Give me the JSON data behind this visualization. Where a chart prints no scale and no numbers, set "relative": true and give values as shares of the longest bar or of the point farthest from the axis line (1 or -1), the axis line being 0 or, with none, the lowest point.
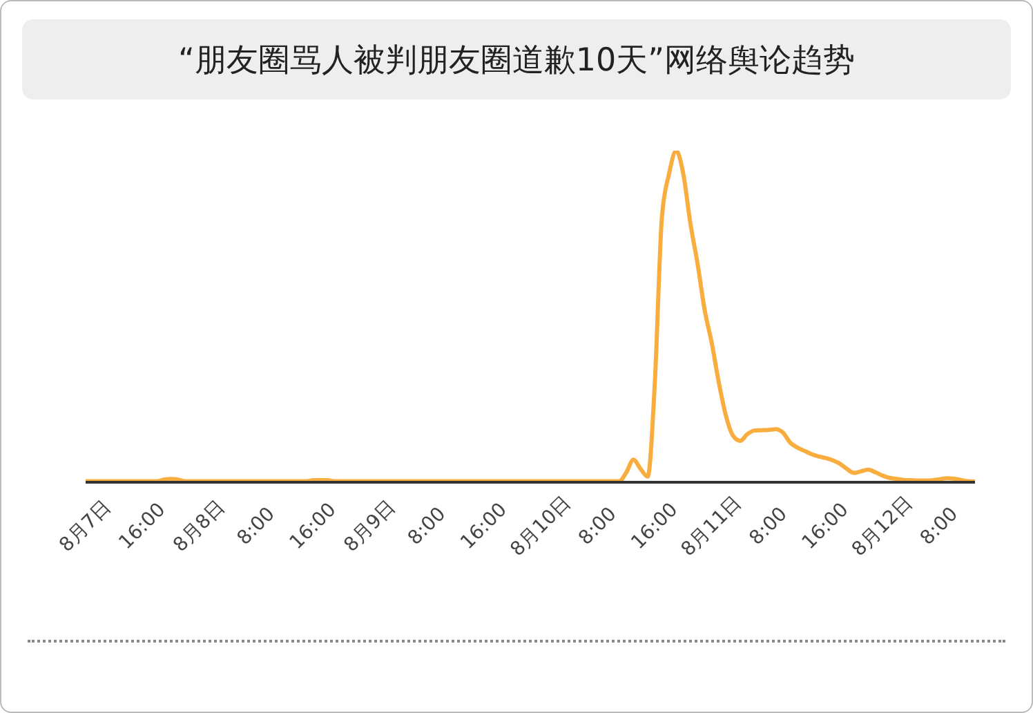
{
  "chart_data": {
    "type": "line",
    "title": "“朋友圈骂人被判朋友圈道歉10天”网络舆论趋势",
    "relative": true,
    "color": "#f9ad3f",
    "categories": [
      "8月7日",
      null,
      null,
      null,
      null,
      null,
      null,
      null,
      "16:00",
      null,
      null,
      null,
      null,
      null,
      null,
      null,
      "8月8日",
      null,
      null,
      null,
      null,
      null,
      null,
      null,
      "8:00",
      null,
      null,
      null,
      null,
      null,
      null,
      null,
      "16:00",
      null,
      null,
      null,
      null,
      null,
      null,
      null,
      "8月9日",
      null,
      null,
      null,
      null,
      null,
      null,
      null,
      "8:00",
      null,
      null,
      null,
      null,
      null,
      null,
      null,
      "16:00",
      null,
      null,
      null,
      null,
      null,
      null,
      null,
      "8月10日",
      null,
      null,
      null,
      null,
      null,
      null,
      null,
      "8:00",
      null,
      null,
      null,
      null,
      null,
      null,
      null,
      "16:00",
      null,
      null,
      null,
      null,
      null,
      null,
      null,
      "8月11日",
      null,
      null,
      null,
      null,
      null,
      null,
      null,
      "8:00",
      null,
      null,
      null,
      null,
      null,
      null,
      null,
      "16:00",
      null,
      null,
      null,
      null,
      null,
      null,
      null,
      "8月12日",
      null,
      null,
      null,
      null,
      null,
      null,
      null,
      "8:00",
      null,
      null,
      null,
      null,
      null
    ],
    "values": [
      0.003,
      0.003,
      0.003,
      0.003,
      0.003,
      0.003,
      0.003,
      0.003,
      0.003,
      0.003,
      0.003,
      0.008,
      0.01,
      0.008,
      0.003,
      0.003,
      0.003,
      0.003,
      0.003,
      0.003,
      0.003,
      0.003,
      0.003,
      0.003,
      0.003,
      0.003,
      0.003,
      0.003,
      0.003,
      0.003,
      0.003,
      0.003,
      0.006,
      0.006,
      0.006,
      0.003,
      0.003,
      0.003,
      0.003,
      0.003,
      0.003,
      0.003,
      0.003,
      0.003,
      0.003,
      0.003,
      0.003,
      0.003,
      0.003,
      0.003,
      0.003,
      0.003,
      0.003,
      0.003,
      0.003,
      0.003,
      0.003,
      0.003,
      0.003,
      0.003,
      0.003,
      0.003,
      0.003,
      0.003,
      0.003,
      0.003,
      0.003,
      0.003,
      0.003,
      0.003,
      0.003,
      0.003,
      0.003,
      0.003,
      0.003,
      0.003,
      0.03,
      0.068,
      0.04,
      0.017,
      0.3,
      0.8,
      0.93,
      1,
      0.93,
      0.78,
      0.66,
      0.52,
      0.42,
      0.3,
      0.2,
      0.14,
      0.125,
      0.145,
      0.156,
      0.157,
      0.158,
      0.16,
      0.15,
      0.12,
      0.105,
      0.095,
      0.085,
      0.078,
      0.073,
      0.066,
      0.056,
      0.04,
      0.028,
      0.033,
      0.038,
      0.03,
      0.02,
      0.013,
      0.01,
      0.007,
      0.006,
      0.005,
      0.005,
      0.006,
      0.009,
      0.012,
      0.011,
      0.007,
      0.003,
      0.002
    ]
  }
}
